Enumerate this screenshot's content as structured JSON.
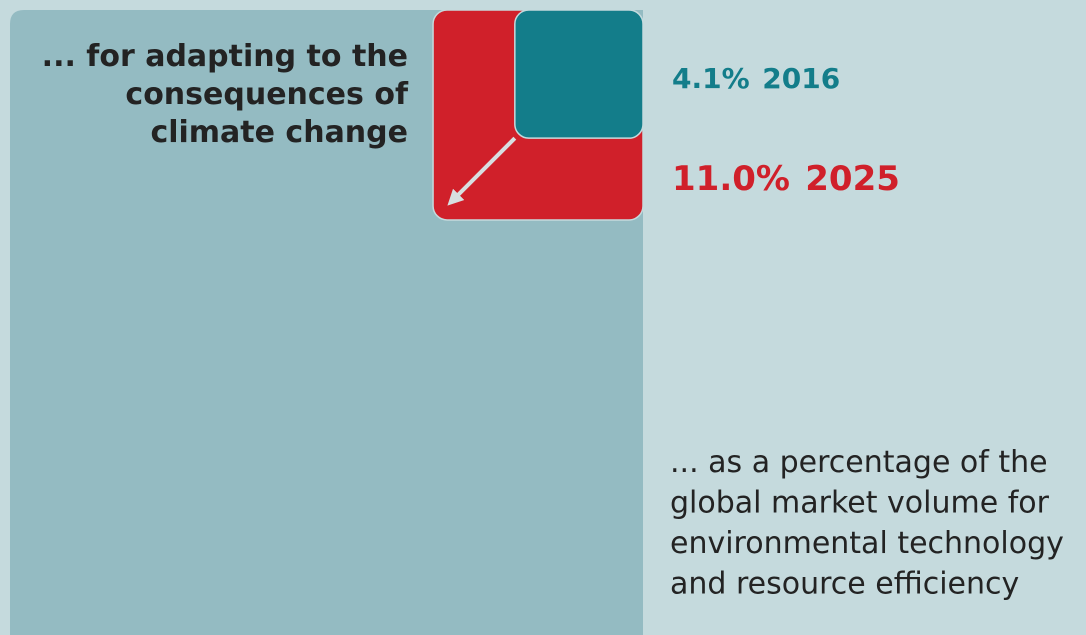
{
  "chart_data": {
    "type": "nested_squares",
    "title": [
      "... for adapting to the",
      "consequences of",
      "climate change"
    ],
    "note": [
      "... as a percentage of the",
      "global market volume for",
      "environmental technology",
      "and resource efficiency"
    ],
    "series": [
      {
        "name": "2016",
        "color": "#137d8a",
        "values": [
          4.1
        ],
        "value_labels": [
          "4.1%"
        ]
      },
      {
        "name": "2025",
        "color": "#d0202a",
        "values": [
          11.0
        ],
        "value_labels": [
          "11.0%"
        ]
      }
    ]
  }
}
